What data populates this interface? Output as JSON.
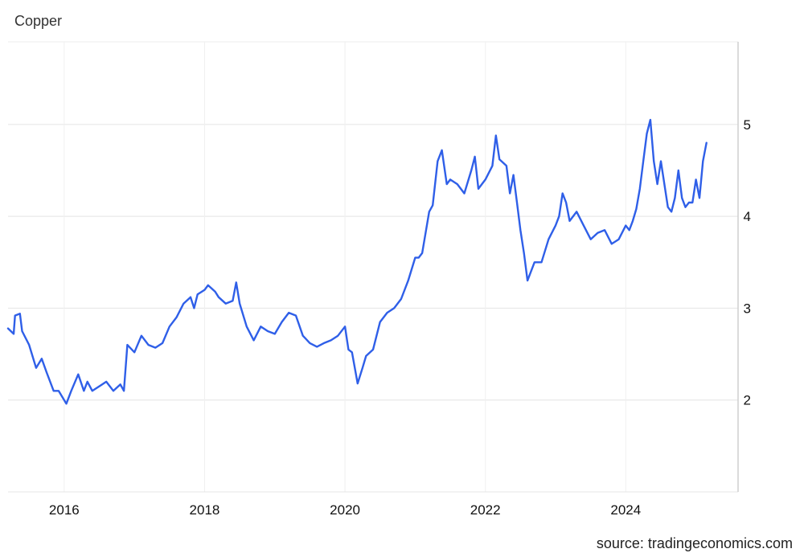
{
  "chart_data": {
    "type": "line",
    "title": "Copper",
    "source": "source: tradingeconomics.com",
    "line_color": "#2f5fe8",
    "grid": true,
    "xlim": [
      2015.2,
      2025.6
    ],
    "ylim": [
      1.0,
      5.9
    ],
    "x_ticks": [
      {
        "value": 2016,
        "label": "2016"
      },
      {
        "value": 2018,
        "label": "2018"
      },
      {
        "value": 2020,
        "label": "2020"
      },
      {
        "value": 2022,
        "label": "2022"
      },
      {
        "value": 2024,
        "label": "2024"
      }
    ],
    "y_ticks": [
      {
        "value": 2,
        "label": "2"
      },
      {
        "value": 3,
        "label": "3"
      },
      {
        "value": 4,
        "label": "4"
      },
      {
        "value": 5,
        "label": "5"
      }
    ],
    "series": [
      {
        "x": [
          2015.2,
          2015.28,
          2015.3,
          2015.37,
          2015.4,
          2015.5,
          2015.6,
          2015.68,
          2015.75,
          2015.85,
          2015.92,
          2016.0,
          2016.03,
          2016.1,
          2016.2,
          2016.28,
          2016.33,
          2016.4,
          2016.5,
          2016.6,
          2016.7,
          2016.8,
          2016.85,
          2016.9,
          2017.0,
          2017.1,
          2017.2,
          2017.3,
          2017.4,
          2017.5,
          2017.6,
          2017.7,
          2017.8,
          2017.85,
          2017.9,
          2018.0,
          2018.05,
          2018.15,
          2018.2,
          2018.3,
          2018.4,
          2018.45,
          2018.5,
          2018.6,
          2018.7,
          2018.8,
          2018.9,
          2019.0,
          2019.1,
          2019.2,
          2019.3,
          2019.4,
          2019.5,
          2019.6,
          2019.7,
          2019.8,
          2019.9,
          2020.0,
          2020.05,
          2020.1,
          2020.18,
          2020.25,
          2020.3,
          2020.4,
          2020.5,
          2020.6,
          2020.7,
          2020.8,
          2020.9,
          2021.0,
          2021.05,
          2021.1,
          2021.2,
          2021.25,
          2021.32,
          2021.38,
          2021.45,
          2021.5,
          2021.6,
          2021.7,
          2021.8,
          2021.85,
          2021.9,
          2022.0,
          2022.1,
          2022.15,
          2022.2,
          2022.3,
          2022.35,
          2022.4,
          2022.45,
          2022.5,
          2022.55,
          2022.6,
          2022.7,
          2022.8,
          2022.9,
          2023.0,
          2023.05,
          2023.1,
          2023.15,
          2023.2,
          2023.3,
          2023.4,
          2023.5,
          2023.6,
          2023.7,
          2023.8,
          2023.9,
          2024.0,
          2024.05,
          2024.1,
          2024.15,
          2024.2,
          2024.25,
          2024.3,
          2024.35,
          2024.4,
          2024.45,
          2024.5,
          2024.6,
          2024.65,
          2024.7,
          2024.75,
          2024.8,
          2024.85,
          2024.9,
          2024.95,
          2025.0,
          2025.05,
          2025.1,
          2025.15
        ],
        "y": [
          2.78,
          2.72,
          2.92,
          2.94,
          2.75,
          2.6,
          2.35,
          2.45,
          2.3,
          2.1,
          2.1,
          2.0,
          1.96,
          2.1,
          2.28,
          2.1,
          2.2,
          2.1,
          2.15,
          2.2,
          2.1,
          2.17,
          2.1,
          2.6,
          2.52,
          2.7,
          2.6,
          2.57,
          2.62,
          2.8,
          2.9,
          3.05,
          3.12,
          3.0,
          3.15,
          3.2,
          3.25,
          3.18,
          3.12,
          3.05,
          3.08,
          3.28,
          3.05,
          2.8,
          2.65,
          2.8,
          2.75,
          2.72,
          2.85,
          2.95,
          2.92,
          2.7,
          2.62,
          2.58,
          2.62,
          2.65,
          2.7,
          2.8,
          2.55,
          2.52,
          2.18,
          2.35,
          2.48,
          2.55,
          2.85,
          2.95,
          3.0,
          3.1,
          3.3,
          3.55,
          3.55,
          3.6,
          4.05,
          4.12,
          4.6,
          4.72,
          4.35,
          4.4,
          4.35,
          4.25,
          4.5,
          4.65,
          4.3,
          4.4,
          4.55,
          4.88,
          4.62,
          4.55,
          4.25,
          4.45,
          4.15,
          3.85,
          3.6,
          3.3,
          3.5,
          3.5,
          3.75,
          3.9,
          4.0,
          4.25,
          4.15,
          3.95,
          4.05,
          3.9,
          3.75,
          3.82,
          3.85,
          3.7,
          3.75,
          3.9,
          3.85,
          3.95,
          4.08,
          4.3,
          4.6,
          4.9,
          5.05,
          4.6,
          4.35,
          4.6,
          4.1,
          4.05,
          4.2,
          4.5,
          4.2,
          4.1,
          4.15,
          4.15,
          4.4,
          4.2,
          4.6,
          4.8
        ]
      }
    ]
  }
}
